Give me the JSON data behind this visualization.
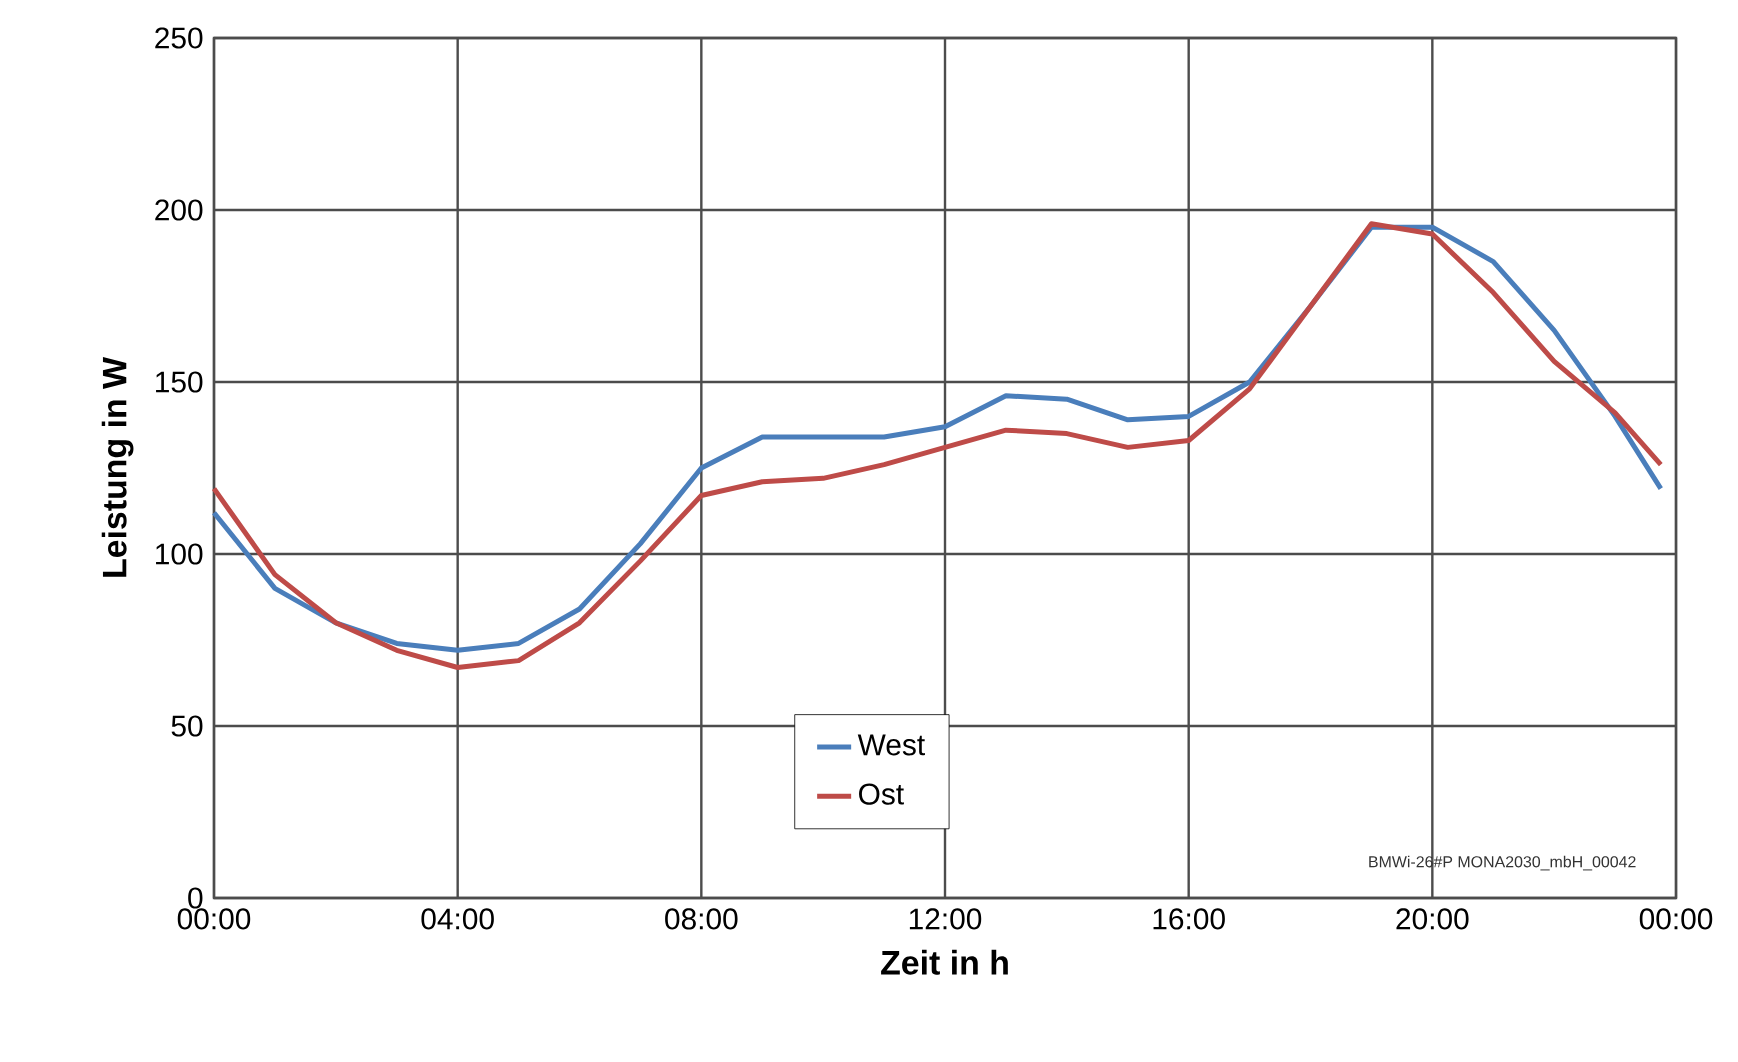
{
  "chart_data": {
    "type": "line",
    "xlabel": "Zeit in h",
    "ylabel": "Leistung in W",
    "x": [
      0,
      1,
      2,
      3,
      4,
      5,
      6,
      7,
      8,
      9,
      10,
      11,
      12,
      13,
      14,
      15,
      16,
      17,
      18,
      19,
      20,
      21,
      22,
      23,
      23.75
    ],
    "series": [
      {
        "name": "West",
        "color": "#4a7ebb",
        "values": [
          112,
          90,
          80,
          74,
          72,
          74,
          84,
          103,
          125,
          134,
          134,
          134,
          137,
          146,
          145,
          139,
          140,
          150,
          172,
          195,
          195,
          185,
          165,
          140,
          119
        ]
      },
      {
        "name": "Ost",
        "color": "#be4b48",
        "values": [
          119,
          94,
          80,
          72,
          67,
          69,
          80,
          98,
          117,
          121,
          122,
          126,
          131,
          136,
          135,
          131,
          133,
          148,
          172,
          196,
          193,
          176,
          156,
          141,
          126
        ]
      }
    ],
    "xlim": [
      0,
      24
    ],
    "ylim": [
      0,
      250
    ],
    "xticks": [
      {
        "value": 0,
        "label": "00:00"
      },
      {
        "value": 4,
        "label": "04:00"
      },
      {
        "value": 8,
        "label": "08:00"
      },
      {
        "value": 12,
        "label": "12:00"
      },
      {
        "value": 16,
        "label": "16:00"
      },
      {
        "value": 20,
        "label": "20:00"
      },
      {
        "value": 24,
        "label": "00:00"
      }
    ],
    "yticks": [
      0,
      50,
      100,
      150,
      200,
      250
    ],
    "grid": true,
    "legend": "bottom",
    "marker": "none",
    "line_style": "solid",
    "annotations": [
      "BMWi-26#P MONA2030_mbH_00042"
    ]
  }
}
